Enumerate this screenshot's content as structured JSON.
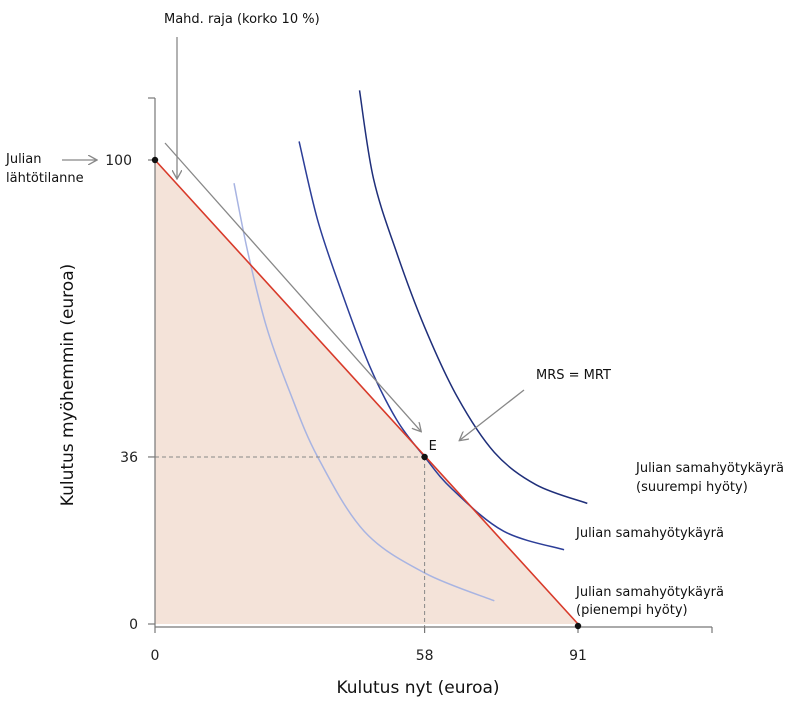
{
  "chart_data": {
    "type": "line",
    "xlabel": "Kulutus nyt (euroa)",
    "ylabel": "Kulutus myöhemmin (euroa)",
    "xlim": [
      0,
      91
    ],
    "ylim": [
      0,
      100
    ],
    "x_ticks": [
      0,
      58,
      91
    ],
    "x_tick_labels": [
      "0",
      "58",
      "91"
    ],
    "y_ticks": [
      0,
      36,
      100
    ],
    "y_tick_labels": [
      "0",
      "36",
      "100"
    ],
    "colors": {
      "budget_line": "#d83a2a",
      "feasible_fill": "#f4e3d9",
      "indifference_low": "#a8b4e2",
      "indifference_mid": "#2c3e98",
      "indifference_high": "#1f2f7a",
      "annotation_arrow": "#888888"
    },
    "budget_line": {
      "points": [
        [
          0,
          100
        ],
        [
          91,
          0
        ]
      ]
    },
    "optimum": {
      "label": "E",
      "x": 58,
      "y": 36
    },
    "start_point": {
      "x": 0,
      "y": 100
    },
    "indifference_curves": [
      {
        "name": "low",
        "label": [
          "Julian samahyötykäyrä",
          "(pienempi hyöty)"
        ],
        "points": [
          [
            17,
            95
          ],
          [
            20,
            80
          ],
          [
            24,
            64
          ],
          [
            29,
            50
          ],
          [
            35,
            36
          ],
          [
            45,
            20
          ],
          [
            58,
            11
          ],
          [
            73,
            5
          ]
        ]
      },
      {
        "name": "mid",
        "label": [
          "Julian samahyötykäyrä"
        ],
        "points": [
          [
            31,
            104
          ],
          [
            35,
            87
          ],
          [
            40,
            72
          ],
          [
            46,
            56
          ],
          [
            52,
            44
          ],
          [
            58,
            36
          ],
          [
            64,
            29
          ],
          [
            75,
            20
          ],
          [
            88,
            16
          ]
        ]
      },
      {
        "name": "high",
        "label": [
          "Julian samahyötykäyrä",
          "(suurempi hyöty)"
        ],
        "points": [
          [
            44,
            115
          ],
          [
            47,
            96
          ],
          [
            52,
            80
          ],
          [
            58,
            64
          ],
          [
            65,
            49
          ],
          [
            73,
            37
          ],
          [
            82,
            30
          ],
          [
            93,
            26
          ]
        ]
      }
    ],
    "annotations": {
      "frontier_label": "Mahd. raja (korko 10 %)",
      "start_label": [
        "Julian",
        "lähtötilanne"
      ],
      "mrs_label": "MRS = MRT"
    }
  }
}
